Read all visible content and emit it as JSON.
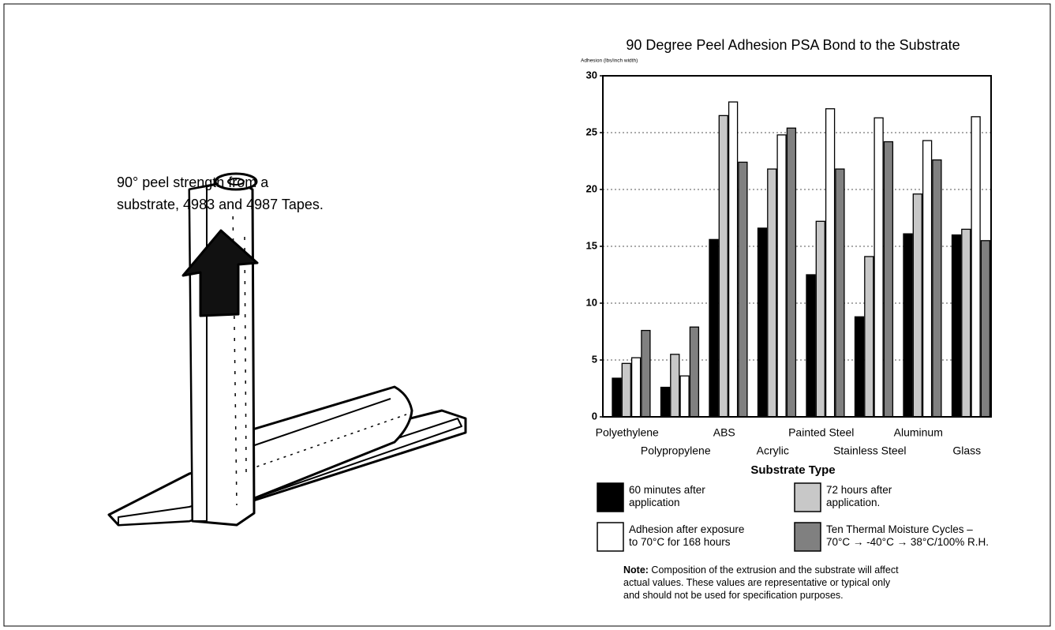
{
  "caption": "90° peel strength from a\nsubstrate, 4983 and 4987 Tapes.",
  "note_label": "Note:",
  "note": " Composition of the extrusion and the substrate will affect\nactual values. These values are representative or typical only\nand should not be used for specification purposes.",
  "chart_data": {
    "type": "bar",
    "title": "90 Degree Peel Adhesion PSA Bond to the Substrate",
    "y_label": "Adhesion (lbs/inch width)",
    "x_label": "Substrate Type",
    "categories": [
      "Polyethylene",
      "Polypropylene",
      "ABS",
      "Acrylic",
      "Painted Steel",
      "Stainless Steel",
      "Aluminum",
      "Glass"
    ],
    "series": [
      {
        "name": "60 minutes after\napplication",
        "color": "#000000",
        "values": [
          3.4,
          2.6,
          15.6,
          16.6,
          12.5,
          8.8,
          16.1,
          16.0
        ]
      },
      {
        "name": "72 hours after\napplication.",
        "color": "#c8c8c8",
        "values": [
          4.7,
          5.5,
          26.5,
          21.8,
          17.2,
          14.1,
          19.6,
          16.5
        ]
      },
      {
        "name": "Adhesion after exposure\nto 70°C for 168 hours",
        "color": "#ffffff",
        "values": [
          5.2,
          3.6,
          27.7,
          24.8,
          27.1,
          26.3,
          24.3,
          26.4
        ]
      },
      {
        "name": "Ten Thermal Moisture Cycles –\n70°C → -40°C → 38°C/100% R.H.",
        "color": "#808080",
        "values": [
          7.6,
          7.9,
          22.4,
          25.4,
          21.8,
          24.2,
          22.6,
          15.5
        ]
      }
    ],
    "ylim": [
      0,
      30
    ],
    "yticks": [
      0,
      5,
      10,
      15,
      20,
      25,
      30
    ],
    "grid": true
  }
}
